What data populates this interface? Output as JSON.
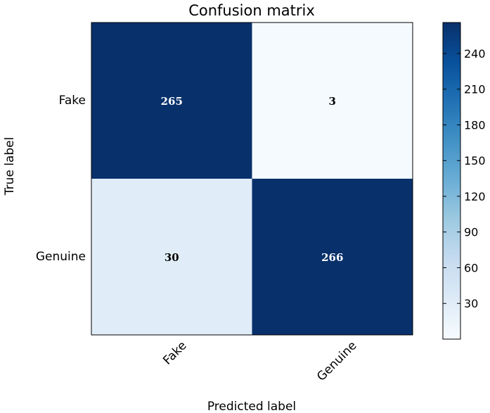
{
  "chart_data": {
    "type": "heatmap",
    "title": "Confusion matrix",
    "xlabel": "Predicted label",
    "ylabel": "True label",
    "x_categories": [
      "Fake",
      "Genuine"
    ],
    "y_categories": [
      "Fake",
      "Genuine"
    ],
    "values": [
      [
        265,
        3
      ],
      [
        30,
        266
      ]
    ],
    "colormap": "Blues",
    "color_low": "#f7fbff",
    "color_high": "#08306b",
    "text_light": "#ffffff",
    "text_dark": "#000000",
    "colorbar": {
      "range": [
        0,
        266
      ],
      "ticks": [
        30,
        60,
        90,
        120,
        150,
        180,
        210,
        240
      ],
      "tick_labels": [
        "30",
        "60",
        "90",
        "120",
        "150",
        "180",
        "210",
        "240"
      ]
    }
  }
}
